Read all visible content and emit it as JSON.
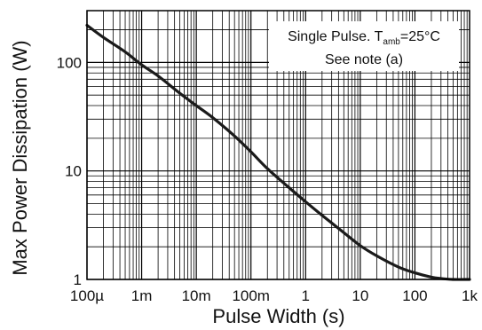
{
  "chart_data": {
    "type": "line",
    "xlabel": "Pulse Width (s)",
    "ylabel": "Max Power Dissipation (W)",
    "x_scale": "log",
    "y_scale": "log",
    "xlim": [
      0.0001,
      1000
    ],
    "ylim": [
      1,
      300
    ],
    "grid": true,
    "x_ticks": [
      {
        "value": 0.0001,
        "label": "100µ"
      },
      {
        "value": 0.001,
        "label": "1m"
      },
      {
        "value": 0.01,
        "label": "10m"
      },
      {
        "value": 0.1,
        "label": "100m"
      },
      {
        "value": 1,
        "label": "1"
      },
      {
        "value": 10,
        "label": "10"
      },
      {
        "value": 100,
        "label": "100"
      },
      {
        "value": 1000,
        "label": "1k"
      }
    ],
    "y_ticks": [
      {
        "value": 1,
        "label": "1"
      },
      {
        "value": 10,
        "label": "10"
      },
      {
        "value": 100,
        "label": "100"
      }
    ],
    "annotation": {
      "line1_prefix": "Single Pulse. T",
      "line1_sub": "amb",
      "line1_suffix": "=25°C",
      "line2": "See note (a)"
    },
    "series": [
      {
        "x": [
          0.0001,
          0.0002,
          0.0005,
          0.001,
          0.002,
          0.005,
          0.01,
          0.02,
          0.05,
          0.1,
          0.2,
          0.5,
          1,
          2,
          5,
          10,
          20,
          50,
          100,
          200,
          300,
          500,
          1000
        ],
        "y": [
          220,
          170,
          125,
          95,
          75,
          52,
          40,
          31,
          21,
          15,
          10.5,
          7.0,
          5.2,
          3.9,
          2.7,
          2.05,
          1.65,
          1.3,
          1.15,
          1.05,
          1.02,
          1.0,
          1.0
        ]
      }
    ]
  }
}
